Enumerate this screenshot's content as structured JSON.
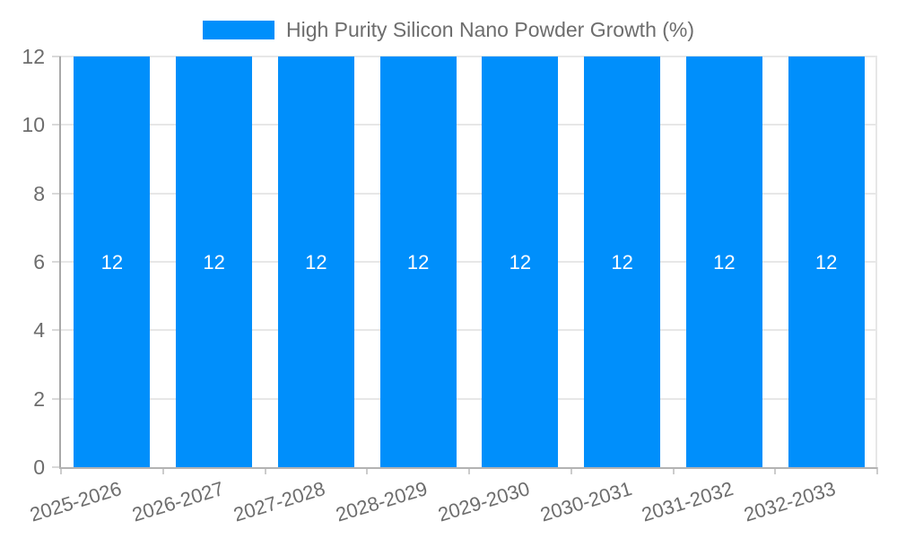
{
  "chart_data": {
    "type": "bar",
    "title": "High Purity Silicon Nano Powder Growth (%)",
    "categories": [
      "2025-2026",
      "2026-2027",
      "2027-2028",
      "2028-2029",
      "2029-2030",
      "2030-2031",
      "2031-2032",
      "2032-2033"
    ],
    "values": [
      12,
      12,
      12,
      12,
      12,
      12,
      12,
      12
    ],
    "bar_labels": [
      "12",
      "12",
      "12",
      "12",
      "12",
      "12",
      "12",
      "12"
    ],
    "xlabel": "",
    "ylabel": "",
    "ylim": [
      0,
      12
    ],
    "yticks": [
      0,
      2,
      4,
      6,
      8,
      10,
      12
    ],
    "grid": true,
    "legend_position": "top",
    "colors": {
      "bar": "#008FFB",
      "bar_label": "#FFFFFF",
      "axis_text": "#6D6D6D",
      "axis_line": "#A9A9A9",
      "gridline": "#E7E7E7",
      "background": "#FFFFFF"
    }
  }
}
